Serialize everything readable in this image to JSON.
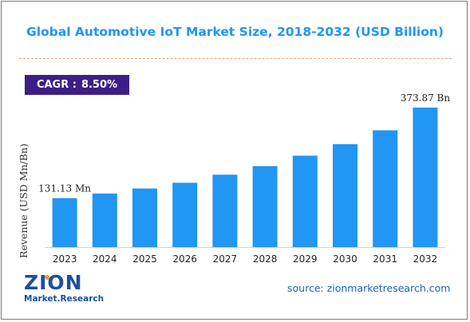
{
  "title": "Global Automotive IoT Market Size, 2018-2032 (USD Billion)",
  "cagr": {
    "label": "CAGR :",
    "value": "8.50%"
  },
  "source": "source: zionmarketresearch.com",
  "logo": {
    "word": "ZION",
    "sub": "Market.Research"
  },
  "colors": {
    "bar": "#2196f3",
    "title": "#2196f3",
    "cagr_bg": "#3b1f86",
    "logo": "#1c4fa0"
  },
  "chart_data": {
    "type": "bar",
    "ylabel": "Revenue (USD Mn/Bn)",
    "categories": [
      "2023",
      "2024",
      "2025",
      "2026",
      "2027",
      "2028",
      "2029",
      "2030",
      "2031",
      "2032"
    ],
    "values": [
      131.13,
      143.5,
      157.0,
      172.5,
      194.0,
      217.0,
      245.0,
      276.0,
      313.0,
      373.87
    ],
    "ylim": [
      0,
      400
    ],
    "grid": false,
    "data_labels": [
      {
        "index": 0,
        "text": "131.13 Mn"
      },
      {
        "index": 9,
        "text": "373.87 Bn"
      }
    ]
  }
}
